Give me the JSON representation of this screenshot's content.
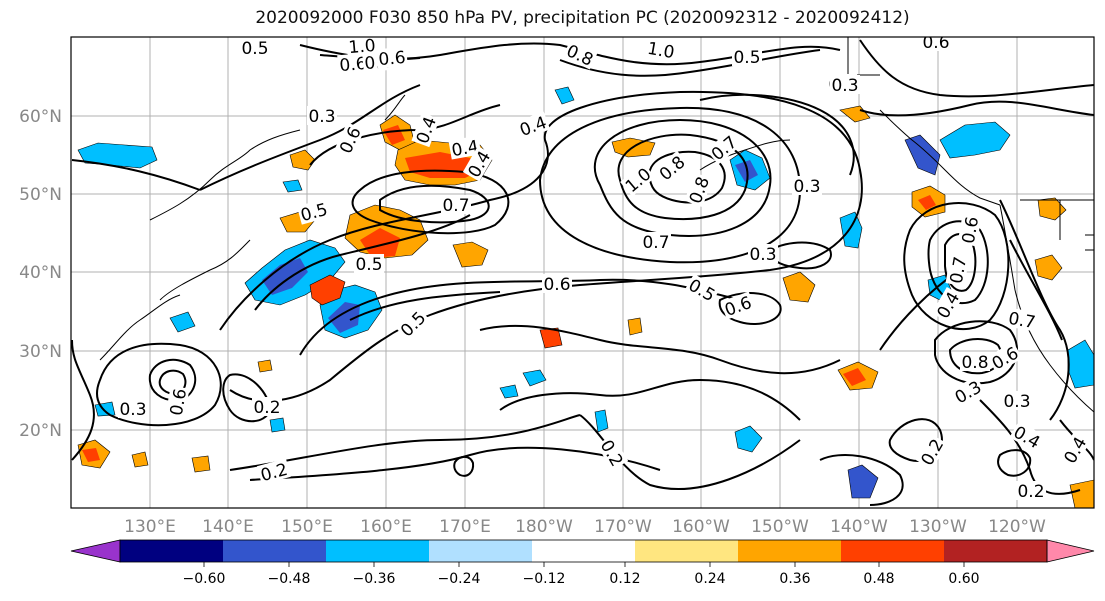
{
  "title": "2020092000 F030 850 hPa PV, precipitation PC (2020092312 - 2020092412)",
  "map": {
    "lat_labels": [
      "60°N",
      "50°N",
      "40°N",
      "30°N",
      "20°N"
    ],
    "lon_labels": [
      "130°E",
      "140°E",
      "150°E",
      "160°E",
      "170°E",
      "180°W",
      "170°W",
      "160°W",
      "150°W",
      "140°W",
      "130°W",
      "120°W"
    ],
    "contour_labels": [
      "0.5",
      "1.0",
      "0.6",
      "0.8",
      "0.6",
      "1.0",
      "0.8",
      "0.5",
      "0.6",
      "0.3",
      "0.3",
      "0.4",
      "0.4",
      "0.6",
      "0.4",
      "0.4",
      "0.7",
      "0.5",
      "0.5",
      "0.7",
      "0.8",
      "0.3",
      "1.0",
      "0.8",
      "0.7",
      "0.3",
      "0.6",
      "0.5",
      "0.6",
      "0.5",
      "0.6",
      "0.7",
      "0.3",
      "0.4",
      "0.7",
      "0.8",
      "0.6",
      "0.3",
      "0.3",
      "0.6",
      "0.3",
      "0.2",
      "0.2",
      "0.2",
      "0.2",
      "0.4",
      "0.2",
      "0.4"
    ]
  },
  "colorbar": {
    "ticks": [
      "−0.60",
      "−0.48",
      "−0.36",
      "−0.24",
      "−0.12",
      "0.12",
      "0.24",
      "0.36",
      "0.48",
      "0.60"
    ],
    "colors": [
      "#9933cc",
      "#000080",
      "#3355cc",
      "#00bfff",
      "#b0e0ff",
      "#ffffff",
      "#ffe680",
      "#ffa500",
      "#ff4000",
      "#b22222",
      "#ff88aa"
    ]
  },
  "precip_colors": {
    "neg_light": "#b0e0ff",
    "neg_mid": "#00bfff",
    "neg_strong": "#3355cc",
    "neg_max": "#000080",
    "pos_light": "#ffe680",
    "pos_mid": "#ffa500",
    "pos_strong": "#ff4000",
    "pos_max": "#b22222"
  }
}
